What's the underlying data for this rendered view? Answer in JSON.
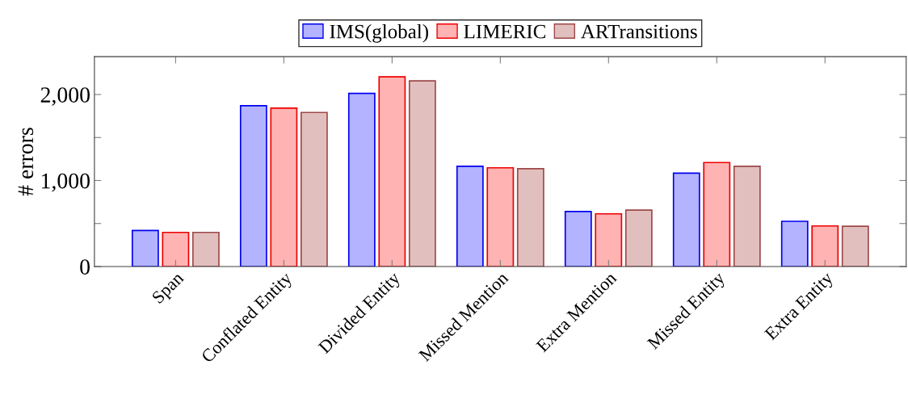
{
  "chart_data": {
    "type": "bar",
    "ylabel": "# errors",
    "categories": [
      "Span",
      "Conflated Entity",
      "Divided Entity",
      "Missed Mention",
      "Extra Mention",
      "Missed Entity",
      "Extra Entity"
    ],
    "series": [
      {
        "name": "IMS(global)",
        "color": "#b3b3ff",
        "values": [
          419,
          1869,
          2013,
          1166,
          639,
          1085,
          526
        ]
      },
      {
        "name": "LIMERIC",
        "color": "#ffb3b3",
        "values": [
          397,
          1841,
          2206,
          1148,
          613,
          1209,
          472
        ]
      },
      {
        "name": "ARTransitions",
        "color": "#e2bfbf",
        "values": [
          397,
          1791,
          2159,
          1138,
          656,
          1165,
          469
        ]
      }
    ],
    "ylim": [
      0,
      2440
    ],
    "yticks": [
      0,
      {
        "value": 500,
        "label": null
      },
      {
        "value": 1000,
        "label": "1,000"
      },
      {
        "value": 1500,
        "label": null
      },
      {
        "value": 2000,
        "label": "2,000"
      }
    ],
    "grid": false,
    "legend": "top"
  }
}
